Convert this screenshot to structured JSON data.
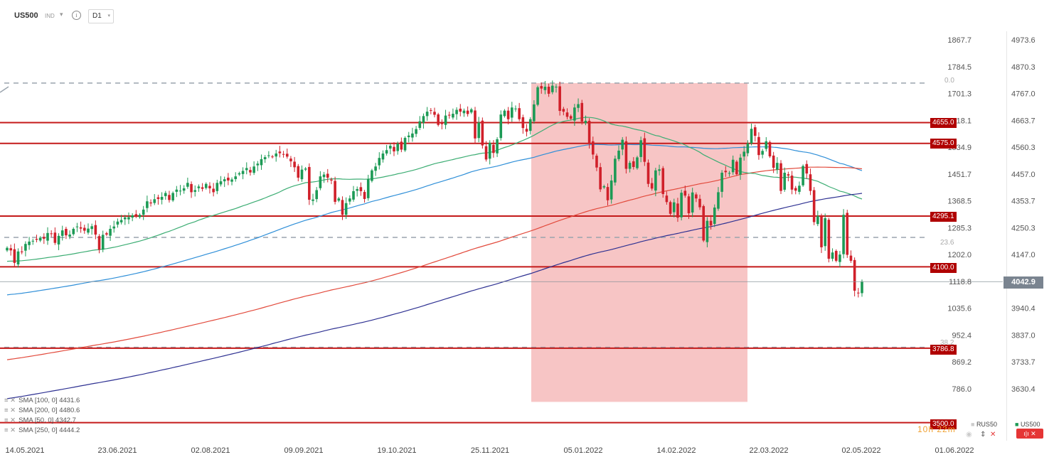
{
  "toolbar": {
    "symbol": "US500",
    "type": "IND",
    "timeframe": "D1",
    "timeframe_caret": "▾",
    "type_caret": "▾",
    "info_glyph": "i"
  },
  "legend": [
    {
      "icon": "≡ ✕",
      "label": "SMA [100, 0] 4431.6"
    },
    {
      "icon": "≡ ✕",
      "label": "SMA [200, 0] 4480.6"
    },
    {
      "icon": "≡ ✕",
      "label": "SMA [50, 0] 4342.7"
    },
    {
      "icon": "≡ ✕",
      "label": "SMA [250, 0] 4444.2"
    }
  ],
  "current_price": "4042.9",
  "level_labels": [
    "4655.0",
    "4575.0",
    "4295.1",
    "4100.0",
    "3786.8",
    "3500.0"
  ],
  "fib_labels": [
    "0.0",
    "23.6",
    "38.2"
  ],
  "bottom_right": {
    "rus_label": "RUS50",
    "us_label": "US500",
    "eye_icon": "◉",
    "updown_icon": "⇕",
    "close_icon": "✕",
    "red_button": "ı|ı ✕",
    "countdown": "10h 22m"
  },
  "chart_data": {
    "type": "candlestick",
    "instrument": "US500",
    "timeframe": "D1",
    "x_tick_labels": [
      "14.05.2021",
      "23.06.2021",
      "02.08.2021",
      "09.09.2021",
      "19.10.2021",
      "25.11.2021",
      "05.01.2022",
      "14.02.2022",
      "22.03.2022",
      "02.05.2022",
      "01.06.2022"
    ],
    "y_tick_labels_right": [
      "4973.6",
      "4870.3",
      "4767.0",
      "4663.7",
      "4560.3",
      "4457.0",
      "4353.7",
      "4250.3",
      "4147.0",
      "4042.9",
      "3940.4",
      "3837.0",
      "3733.7",
      "3630.4"
    ],
    "y_tick_labels_left": [
      "1867.7",
      "1784.5",
      "1701.3",
      "1618.1",
      "1534.9",
      "1451.7",
      "1368.5",
      "1285.3",
      "1202.0",
      "1118.8",
      "1035.6",
      "952.4",
      "869.2",
      "786.0"
    ],
    "ylim": [
      3530,
      5017
    ],
    "horizontal_levels": [
      4655.0,
      4575.0,
      4295.1,
      4100.0,
      3786.8,
      3500.0
    ],
    "fibonacci": [
      {
        "level": "0.0",
        "price": 4807
      },
      {
        "level": "23.6",
        "price": 4213
      },
      {
        "level": "38.2",
        "price": 3790
      }
    ],
    "highlight_zone": {
      "from": "2021-12-14",
      "to": "2022-03-18",
      "price_range": [
        3580,
        4807
      ]
    },
    "sma": [
      {
        "period": 100,
        "last": 4431.6,
        "color": "#2f8fd8"
      },
      {
        "period": 200,
        "last": 4480.6,
        "color": "#e24a3c"
      },
      {
        "period": 50,
        "last": 4342.7,
        "color": "#3cad73"
      },
      {
        "period": 250,
        "last": 4444.2,
        "color": "#2e3192"
      }
    ],
    "series": [
      {
        "name": "US500",
        "close": [
          4173,
          4163,
          4115,
          4159,
          4156,
          4188,
          4197,
          4200,
          4204,
          4212,
          4208,
          4230,
          4227,
          4192,
          4219,
          4240,
          4221,
          4224,
          4246,
          4255,
          4247,
          4239,
          4247,
          4256,
          4224,
          4166,
          4223,
          4224,
          4246,
          4255,
          4274,
          4280,
          4290,
          4291,
          4298,
          4297,
          4300,
          4320,
          4352,
          4344,
          4360,
          4361,
          4369,
          4384,
          4357,
          4384,
          4397,
          4393,
          4402,
          4423,
          4387,
          4395,
          4409,
          4400,
          4419,
          4402,
          4387,
          4423,
          4429,
          4437,
          4432,
          4436,
          4448,
          4460,
          4469,
          4480,
          4463,
          4486,
          4497,
          4514,
          4522,
          4529,
          4523,
          4536,
          4537,
          4532,
          4524,
          4506,
          4483,
          4443,
          4474,
          4478,
          4358,
          4359,
          4395,
          4448,
          4455,
          4443,
          4432,
          4350,
          4363,
          4300,
          4345,
          4363,
          4391,
          4399,
          4391,
          4361,
          4438,
          4471,
          4486,
          4519,
          4536,
          4549,
          4566,
          4544,
          4574,
          4551,
          4596,
          4605,
          4613,
          4630,
          4660,
          4680,
          4697,
          4701,
          4685,
          4646,
          4649,
          4682,
          4682,
          4689,
          4704,
          4697,
          4701,
          4688,
          4706,
          4594,
          4655,
          4567,
          4513,
          4577,
          4538,
          4591,
          4686,
          4701,
          4668,
          4713,
          4709,
          4668,
          4634,
          4620,
          4668,
          4725,
          4791,
          4786,
          4793,
          4766,
          4797,
          4793,
          4700,
          4697,
          4677,
          4670,
          4713,
          4726,
          4659,
          4662,
          4577,
          4532,
          4482,
          4398,
          4410,
          4356,
          4432,
          4516,
          4547,
          4589,
          4477,
          4500,
          4484,
          4521,
          4587,
          4504,
          4419,
          4401,
          4471,
          4475,
          4380,
          4349,
          4304,
          4348,
          4289,
          4385,
          4374,
          4306,
          4386,
          4363,
          4329,
          4201,
          4277,
          4259,
          4328,
          4387,
          4462,
          4464,
          4461,
          4512,
          4456,
          4520,
          4543,
          4575,
          4631,
          4604,
          4530,
          4546,
          4583,
          4525,
          4481,
          4500,
          4392,
          4462,
          4451,
          4397,
          4393,
          4412,
          4488,
          4459,
          4392,
          4272,
          4296,
          4175,
          4287,
          4131,
          4155,
          4123,
          4147,
          4300,
          4146,
          4123,
          4008,
          4000,
          4043
        ]
      }
    ]
  }
}
